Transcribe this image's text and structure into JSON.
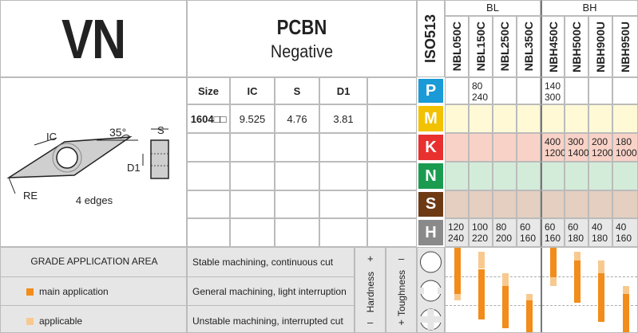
{
  "header": {
    "shape_code": "VN",
    "material": "PCBN",
    "type": "Negative",
    "standard": "ISO513"
  },
  "insert_drawing": {
    "angle_label": "35°",
    "ic_label": "IC",
    "s_label": "S",
    "d1_label": "D1",
    "re_label": "RE",
    "edges": "4 edges"
  },
  "dimensions": {
    "headers": [
      "Size",
      "IC",
      "S",
      "D1"
    ],
    "rows": [
      {
        "size": "1604□□",
        "ic": "9.525",
        "s": "4.76",
        "d1": "3.81"
      }
    ]
  },
  "groups": [
    {
      "name": "BL",
      "grades": [
        "NBL050C",
        "NBL150C",
        "NBL250C",
        "NBL350C"
      ]
    },
    {
      "name": "BH",
      "grades": [
        "NBH450C",
        "NBH500C",
        "NBH900U",
        "NBH950U"
      ]
    }
  ],
  "iso_rows": [
    {
      "letter": "P",
      "color": "#1a9ad6",
      "bg": "#ffffff",
      "values": [
        "",
        "80\n240",
        "",
        "",
        "140\n300",
        "",
        "",
        ""
      ]
    },
    {
      "letter": "M",
      "color": "#f2c100",
      "bg": "#fff9d6",
      "values": [
        "",
        "",
        "",
        "",
        "",
        "",
        "",
        ""
      ]
    },
    {
      "letter": "K",
      "color": "#e8312f",
      "bg": "#f9d2c7",
      "values": [
        "",
        "",
        "",
        "",
        "400\n1200",
        "300\n1400",
        "200\n1200",
        "180\n1000"
      ]
    },
    {
      "letter": "N",
      "color": "#1b9b50",
      "bg": "#d3ecd9",
      "values": [
        "",
        "",
        "",
        "",
        "",
        "",
        "",
        ""
      ]
    },
    {
      "letter": "S",
      "color": "#6e3a14",
      "bg": "#e4cfc0",
      "values": [
        "",
        "",
        "",
        "",
        "",
        "",
        "",
        ""
      ]
    },
    {
      "letter": "H",
      "color": "#8a8a8a",
      "bg": "#e8e8e8",
      "values": [
        "120\n240",
        "100\n220",
        "80\n200",
        "60\n160",
        "60\n160",
        "60\n180",
        "40\n180",
        "40\n160"
      ]
    }
  ],
  "legend": {
    "title": "GRADE APPLICATION AREA",
    "main": "main application",
    "applicable": "applicable",
    "main_color": "#f28c1a",
    "applicable_color": "#f8c98f",
    "machining": [
      "Stable machining, continuous cut",
      "General machining, light interruption",
      "Unstable machining, interrupted cut"
    ],
    "hardness": "Hardness",
    "toughness": "Toughness",
    "plus": "+",
    "minus": "–"
  },
  "application_bars": [
    {
      "main": [
        0.0,
        0.55
      ],
      "applicable": [
        0.55,
        0.62
      ]
    },
    {
      "main": [
        0.25,
        0.85
      ],
      "applicable": [
        0.05,
        0.25
      ]
    },
    {
      "main": [
        0.45,
        0.95
      ],
      "applicable": [
        0.3,
        0.45
      ]
    },
    {
      "main": [
        0.62,
        1.0
      ],
      "applicable": [
        0.55,
        0.62
      ]
    },
    {
      "main": [
        0.0,
        0.35
      ],
      "applicable": [
        0.35,
        0.45
      ]
    },
    {
      "main": [
        0.15,
        0.65
      ],
      "applicable": [
        0.05,
        0.15
      ]
    },
    {
      "main": [
        0.3,
        0.88
      ],
      "applicable": [
        0.15,
        0.3
      ]
    },
    {
      "main": [
        0.55,
        1.0
      ],
      "applicable": [
        0.45,
        0.55
      ]
    }
  ]
}
